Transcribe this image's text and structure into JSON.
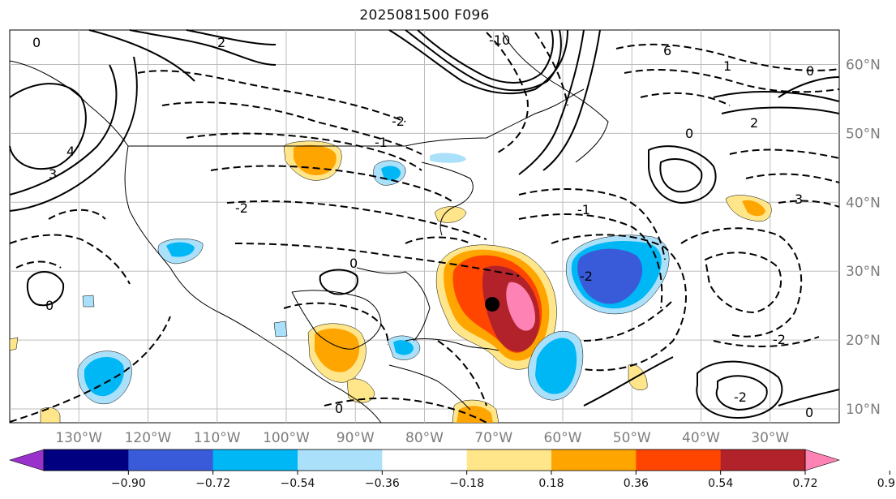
{
  "title": "2025081500 F096",
  "map": {
    "projection": "PlateCarree",
    "extent_lon": [
      -140,
      -20
    ],
    "extent_lat": [
      8,
      65
    ],
    "lat_labels": [
      "10°N",
      "20°N",
      "30°N",
      "40°N",
      "50°N",
      "60°N"
    ],
    "lon_labels": [
      "130°W",
      "120°W",
      "110°W",
      "100°W",
      "90°W",
      "80°W",
      "70°W",
      "60°W",
      "50°W",
      "40°W",
      "30°W"
    ],
    "contour_labels": [
      "0",
      "2",
      "4",
      "6",
      "-10",
      "-2",
      "-1",
      "3",
      "1"
    ],
    "marker": {
      "label": "storm-center",
      "lon": -70.2,
      "lat": 25.2,
      "color": "#000000"
    }
  },
  "colorbar": {
    "ticks": [
      "−0.90",
      "−0.72",
      "−0.54",
      "−0.36",
      "−0.18",
      "0.18",
      "0.36",
      "0.54",
      "0.72",
      "0.90"
    ],
    "colors": [
      "#9932cc",
      "#000080",
      "#3a5bd9",
      "#00b7f5",
      "#aae0fa",
      "#ffffff",
      "#ffe68a",
      "#ffa500",
      "#ff4500",
      "#b2222a",
      "#ff82b4"
    ],
    "extend": "both"
  }
}
